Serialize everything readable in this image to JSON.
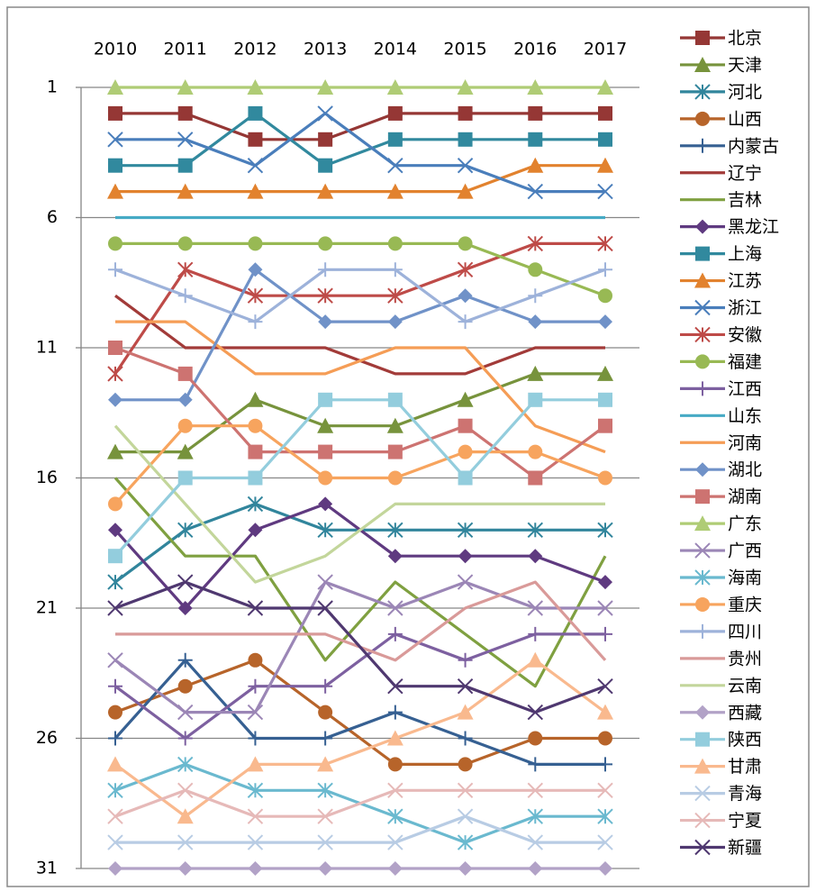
{
  "chart_data": {
    "type": "line",
    "categories": [
      "2010",
      "2011",
      "2012",
      "2013",
      "2014",
      "2015",
      "2016",
      "2017"
    ],
    "ylim": [
      31,
      1
    ],
    "yticks": [
      1,
      6,
      11,
      16,
      21,
      26,
      31
    ],
    "grid": true,
    "legend": "right",
    "series": [
      {
        "name": "北京",
        "color": "#953735",
        "marker": "square",
        "values": [
          2,
          2,
          3,
          3,
          2,
          2,
          2,
          2
        ]
      },
      {
        "name": "天津",
        "color": "#77933C",
        "marker": "triangle",
        "values": [
          15,
          15,
          13,
          14,
          14,
          13,
          12,
          12
        ]
      },
      {
        "name": "河北",
        "color": "#31859C",
        "marker": "asterisk",
        "values": [
          20,
          18,
          17,
          18,
          18,
          18,
          18,
          18
        ]
      },
      {
        "name": "山西",
        "color": "#B7642A",
        "marker": "circle",
        "values": [
          25,
          24,
          23,
          25,
          27,
          27,
          26,
          26
        ]
      },
      {
        "name": "内蒙古",
        "color": "#366092",
        "marker": "plus",
        "values": [
          26,
          23,
          26,
          26,
          25,
          26,
          27,
          27
        ]
      },
      {
        "name": "辽宁",
        "color": "#A23B39",
        "marker": "none",
        "values": [
          9,
          11,
          11,
          11,
          12,
          12,
          11,
          11
        ]
      },
      {
        "name": "吉林",
        "color": "#7FA040",
        "marker": "none",
        "values": [
          16,
          19,
          19,
          23,
          20,
          22,
          24,
          19
        ]
      },
      {
        "name": "黑龙江",
        "color": "#5F3A80",
        "marker": "diamond",
        "values": [
          18,
          21,
          18,
          17,
          19,
          19,
          19,
          20
        ]
      },
      {
        "name": "上海",
        "color": "#31899E",
        "marker": "square",
        "values": [
          4,
          4,
          2,
          4,
          3,
          3,
          3,
          3
        ]
      },
      {
        "name": "江苏",
        "color": "#E2822E",
        "marker": "triangle",
        "values": [
          5,
          5,
          5,
          5,
          5,
          5,
          4,
          4
        ]
      },
      {
        "name": "浙江",
        "color": "#4A7EBB",
        "marker": "x",
        "values": [
          3,
          3,
          4,
          2,
          4,
          4,
          5,
          5
        ]
      },
      {
        "name": "安徽",
        "color": "#BE4B48",
        "marker": "asterisk",
        "values": [
          12,
          8,
          9,
          9,
          9,
          8,
          7,
          7
        ]
      },
      {
        "name": "福建",
        "color": "#98B954",
        "marker": "circle",
        "values": [
          7,
          7,
          7,
          7,
          7,
          7,
          8,
          9
        ]
      },
      {
        "name": "江西",
        "color": "#7D60A0",
        "marker": "plus",
        "values": [
          24,
          26,
          24,
          24,
          22,
          23,
          22,
          22
        ]
      },
      {
        "name": "山东",
        "color": "#46AAC5",
        "marker": "none",
        "values": [
          6,
          6,
          6,
          6,
          6,
          6,
          6,
          6
        ]
      },
      {
        "name": "河南",
        "color": "#F59D56",
        "marker": "none",
        "values": [
          10,
          10,
          12,
          12,
          11,
          11,
          14,
          15
        ]
      },
      {
        "name": "湖北",
        "color": "#7092C8",
        "marker": "diamond",
        "values": [
          13,
          13,
          8,
          10,
          10,
          9,
          10,
          10
        ]
      },
      {
        "name": "湖南",
        "color": "#CD7371",
        "marker": "square",
        "values": [
          11,
          12,
          15,
          15,
          15,
          14,
          16,
          14
        ]
      },
      {
        "name": "广东",
        "color": "#AFCC75",
        "marker": "triangle",
        "values": [
          1,
          1,
          1,
          1,
          1,
          1,
          1,
          1
        ]
      },
      {
        "name": "广西",
        "color": "#9B86B6",
        "marker": "x",
        "values": [
          23,
          25,
          25,
          20,
          21,
          20,
          21,
          21
        ]
      },
      {
        "name": "海南",
        "color": "#6AB9CF",
        "marker": "asterisk",
        "values": [
          28,
          27,
          28,
          28,
          29,
          30,
          29,
          29
        ]
      },
      {
        "name": "重庆",
        "color": "#F7A45E",
        "marker": "circle",
        "values": [
          17,
          14,
          14,
          16,
          16,
          15,
          15,
          16
        ]
      },
      {
        "name": "四川",
        "color": "#9DB2DA",
        "marker": "plus",
        "values": [
          8,
          9,
          10,
          8,
          8,
          10,
          9,
          8
        ]
      },
      {
        "name": "贵州",
        "color": "#D99A99",
        "marker": "none",
        "values": [
          22,
          22,
          22,
          22,
          23,
          21,
          20,
          23
        ]
      },
      {
        "name": "云南",
        "color": "#C3D69B",
        "marker": "none",
        "values": [
          14,
          17,
          20,
          19,
          17,
          17,
          17,
          17
        ]
      },
      {
        "name": "西藏",
        "color": "#B2A2C7",
        "marker": "diamond",
        "values": [
          31,
          31,
          31,
          31,
          31,
          31,
          31,
          31
        ]
      },
      {
        "name": "陕西",
        "color": "#93CDDD",
        "marker": "square",
        "values": [
          19,
          16,
          16,
          13,
          13,
          16,
          13,
          13
        ]
      },
      {
        "name": "甘肃",
        "color": "#F9B98E",
        "marker": "triangle",
        "values": [
          27,
          29,
          27,
          27,
          26,
          25,
          23,
          25
        ]
      },
      {
        "name": "青海",
        "color": "#B8CCE4",
        "marker": "x",
        "values": [
          30,
          30,
          30,
          30,
          30,
          29,
          30,
          30
        ]
      },
      {
        "name": "宁夏",
        "color": "#E6B9B8",
        "marker": "x",
        "values": [
          29,
          28,
          29,
          29,
          28,
          28,
          28,
          28
        ]
      },
      {
        "name": "新疆",
        "color": "#4F3870",
        "marker": "x",
        "values": [
          21,
          20,
          21,
          21,
          24,
          24,
          25,
          24
        ]
      }
    ]
  }
}
